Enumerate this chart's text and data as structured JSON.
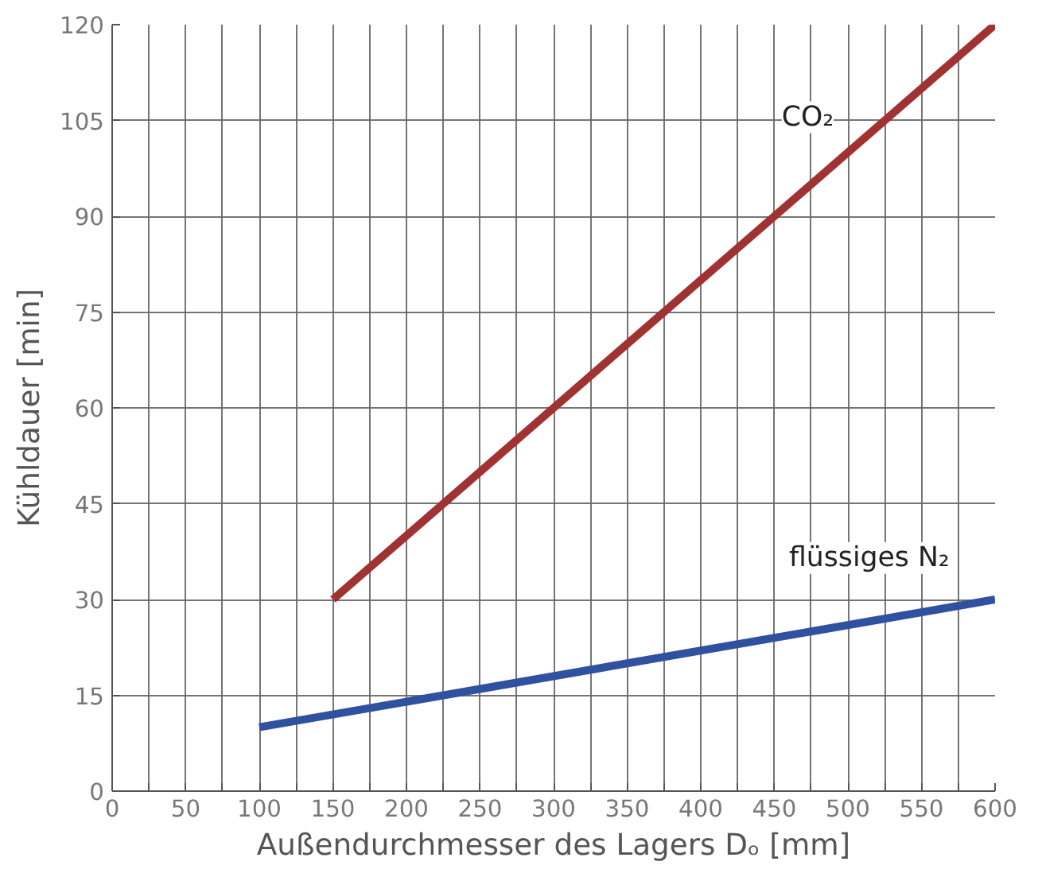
{
  "chart_data": {
    "type": "line",
    "xlabel": "Außendurchmesser des Lagers Dₒ [mm]",
    "ylabel": "Kühldauer [min]",
    "series": [
      {
        "name": "CO₂",
        "color": "#a03232",
        "x": [
          150,
          600
        ],
        "values": [
          30,
          120
        ]
      },
      {
        "name": "flüssiges N₂",
        "color": "#3050a0",
        "x": [
          100,
          600
        ],
        "values": [
          10,
          30
        ]
      }
    ],
    "xlim": [
      0,
      600
    ],
    "ylim": [
      0,
      120
    ],
    "xticks": [
      0,
      {
        "value": 25,
        "label": null
      },
      50,
      {
        "value": 75,
        "label": null
      },
      100,
      {
        "value": 125,
        "label": null
      },
      150,
      {
        "value": 175,
        "label": null
      },
      200,
      {
        "value": 225,
        "label": null
      },
      250,
      {
        "value": 275,
        "label": null
      },
      300,
      {
        "value": 325,
        "label": null
      },
      350,
      {
        "value": 375,
        "label": null
      },
      400,
      {
        "value": 425,
        "label": null
      },
      450,
      {
        "value": 475,
        "label": null
      },
      500,
      {
        "value": 525,
        "label": null
      },
      550,
      {
        "value": 575,
        "label": null
      },
      600
    ],
    "yticks": [
      0,
      15,
      30,
      45,
      60,
      75,
      90,
      105,
      120
    ],
    "grid": true,
    "line_style": "solid",
    "marker": "none"
  }
}
